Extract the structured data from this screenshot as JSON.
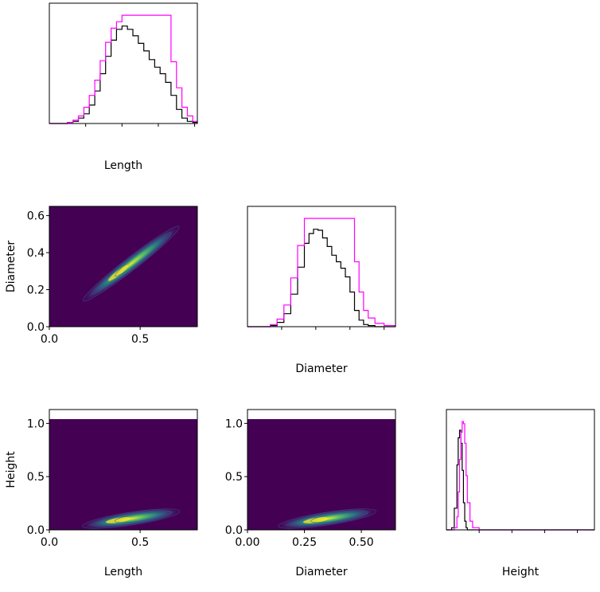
{
  "colors": {
    "background": "#ffffff",
    "true_hist": "#000000",
    "model_hist": "#ff00ff",
    "density_low": "#440154",
    "density_mid": "#21918c",
    "density_high": "#fde725"
  },
  "chart_data": [
    {
      "id": "length_hist",
      "type": "histogram",
      "xlabel": "Length",
      "xlim": [
        0.0,
        0.815
      ],
      "x_ticks": [
        0.2,
        0.4,
        0.6,
        0.8
      ],
      "show_tick_labels": false,
      "series": [
        {
          "x": [
            0.0,
            0.05,
            0.1,
            0.13,
            0.16,
            0.19,
            0.22,
            0.25,
            0.28,
            0.31,
            0.34,
            0.37,
            0.4,
            0.43,
            0.46,
            0.49,
            0.52,
            0.55,
            0.58,
            0.61,
            0.64,
            0.67,
            0.7,
            0.73,
            0.76,
            0.79,
            0.815
          ],
          "y": [
            0.0,
            0.0,
            0.01,
            0.02,
            0.05,
            0.09,
            0.17,
            0.3,
            0.46,
            0.62,
            0.77,
            0.87,
            0.9,
            0.87,
            0.81,
            0.74,
            0.67,
            0.59,
            0.52,
            0.46,
            0.38,
            0.26,
            0.13,
            0.05,
            0.02,
            0.01,
            0.0
          ]
        },
        {
          "x": [
            0.0,
            0.05,
            0.1,
            0.13,
            0.16,
            0.19,
            0.22,
            0.25,
            0.28,
            0.31,
            0.34,
            0.37,
            0.4,
            0.43,
            0.46,
            0.49,
            0.52,
            0.55,
            0.58,
            0.61,
            0.64,
            0.67,
            0.7,
            0.73,
            0.76,
            0.79,
            0.815
          ],
          "y": [
            0.0,
            0.0,
            0.01,
            0.03,
            0.07,
            0.15,
            0.26,
            0.4,
            0.58,
            0.75,
            0.88,
            0.94,
            1.0,
            1.0,
            1.0,
            1.0,
            1.0,
            1.0,
            1.0,
            1.0,
            1.0,
            0.57,
            0.33,
            0.15,
            0.07,
            0.02,
            0.0
          ]
        }
      ]
    },
    {
      "id": "diameter_length",
      "type": "heatmap",
      "ylabel": "Diameter",
      "xlim": [
        0.0,
        0.815
      ],
      "ylim": [
        0.0,
        0.65
      ],
      "x_ticks": [
        0.0,
        0.5
      ],
      "x_tick_labels": [
        "0.0",
        "0.5"
      ],
      "y_ticks": [
        0.0,
        0.2,
        0.4,
        0.6
      ],
      "y_tick_labels": [
        "0.0",
        "0.2",
        "0.4",
        "0.6"
      ],
      "ridge": {
        "x": [
          0.2,
          0.4,
          0.55,
          0.7
        ],
        "y": [
          0.15,
          0.3,
          0.42,
          0.53
        ]
      },
      "peak": {
        "x": 0.38,
        "y": 0.29
      }
    },
    {
      "id": "diameter_hist",
      "type": "histogram",
      "xlabel": "Diameter",
      "xlim": [
        0.0,
        0.65
      ],
      "x_ticks": [
        0.15,
        0.3,
        0.45,
        0.6
      ],
      "show_tick_labels": false,
      "series": [
        {
          "x": [
            0.0,
            0.05,
            0.1,
            0.13,
            0.16,
            0.19,
            0.22,
            0.25,
            0.27,
            0.29,
            0.31,
            0.33,
            0.35,
            0.37,
            0.39,
            0.41,
            0.43,
            0.45,
            0.47,
            0.49,
            0.51,
            0.53,
            0.56,
            0.6,
            0.65
          ],
          "y": [
            0.0,
            0.0,
            0.01,
            0.04,
            0.12,
            0.3,
            0.55,
            0.77,
            0.86,
            0.9,
            0.89,
            0.82,
            0.74,
            0.66,
            0.6,
            0.54,
            0.46,
            0.32,
            0.15,
            0.06,
            0.02,
            0.01,
            0.0,
            0.0,
            0.0
          ]
        },
        {
          "x": [
            0.0,
            0.05,
            0.1,
            0.13,
            0.16,
            0.19,
            0.22,
            0.25,
            0.27,
            0.29,
            0.31,
            0.33,
            0.35,
            0.37,
            0.39,
            0.41,
            0.43,
            0.45,
            0.47,
            0.49,
            0.51,
            0.53,
            0.56,
            0.6,
            0.65
          ],
          "y": [
            0.0,
            0.0,
            0.02,
            0.07,
            0.2,
            0.45,
            0.75,
            1.0,
            1.0,
            1.0,
            1.0,
            1.0,
            1.0,
            1.0,
            1.0,
            1.0,
            1.0,
            1.0,
            0.6,
            0.32,
            0.15,
            0.08,
            0.03,
            0.01,
            0.0
          ]
        }
      ]
    },
    {
      "id": "height_length",
      "type": "heatmap",
      "xlabel": "Length",
      "ylabel": "Height",
      "xlim": [
        0.0,
        0.815
      ],
      "ylim": [
        0.0,
        1.13
      ],
      "image_top": 1.04,
      "x_ticks": [
        0.0,
        0.5
      ],
      "x_tick_labels": [
        "0.0",
        "0.5"
      ],
      "y_ticks": [
        0.0,
        0.5,
        1.0
      ],
      "y_tick_labels": [
        "0.0",
        "0.5",
        "1.0"
      ],
      "ridge": {
        "x": [
          0.2,
          0.4,
          0.55,
          0.7
        ],
        "y": [
          0.04,
          0.09,
          0.13,
          0.17
        ]
      },
      "peak": {
        "x": 0.38,
        "y": 0.09
      }
    },
    {
      "id": "height_diameter",
      "type": "heatmap",
      "xlabel": "Diameter",
      "xlim": [
        0.0,
        0.65
      ],
      "ylim": [
        0.0,
        1.13
      ],
      "image_top": 1.04,
      "x_ticks": [
        0.0,
        0.25,
        0.5
      ],
      "x_tick_labels": [
        "0.00",
        "0.25",
        "0.50"
      ],
      "y_ticks": [
        0.0,
        0.5,
        1.0
      ],
      "y_tick_labels": [
        "0.0",
        "0.5",
        "1.0"
      ],
      "ridge": {
        "x": [
          0.15,
          0.3,
          0.42,
          0.55
        ],
        "y": [
          0.04,
          0.09,
          0.13,
          0.17
        ]
      },
      "peak": {
        "x": 0.3,
        "y": 0.09
      }
    },
    {
      "id": "height_hist",
      "type": "histogram",
      "xlabel": "Height",
      "xlim": [
        0.0,
        1.13
      ],
      "x_ticks": [
        0.25,
        0.5,
        0.75,
        1.0
      ],
      "show_tick_labels": false,
      "series": [
        {
          "x": [
            0.0,
            0.04,
            0.06,
            0.08,
            0.09,
            0.1,
            0.11,
            0.12,
            0.13,
            0.14,
            0.15,
            0.16,
            0.18,
            0.2,
            0.25,
            1.13
          ],
          "y": [
            0.0,
            0.02,
            0.2,
            0.6,
            0.85,
            0.92,
            0.8,
            0.55,
            0.25,
            0.08,
            0.02,
            0.0,
            0.0,
            0.0,
            0.0,
            0.0
          ]
        },
        {
          "x": [
            0.0,
            0.04,
            0.06,
            0.08,
            0.09,
            0.1,
            0.11,
            0.12,
            0.13,
            0.14,
            0.15,
            0.16,
            0.18,
            0.2,
            0.25,
            1.13
          ],
          "y": [
            0.0,
            0.0,
            0.02,
            0.12,
            0.35,
            0.65,
            0.9,
            1.0,
            0.98,
            0.8,
            0.5,
            0.25,
            0.08,
            0.02,
            0.0,
            0.0
          ]
        }
      ]
    }
  ]
}
